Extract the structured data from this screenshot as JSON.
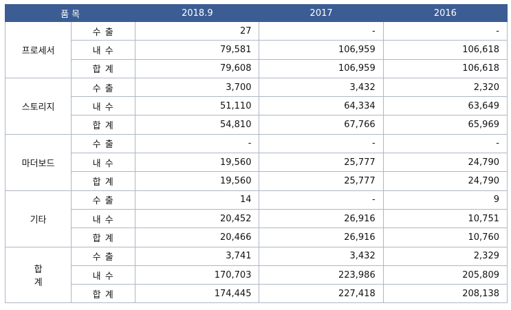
{
  "header": {
    "item": "품 목",
    "cols": [
      "2018.9",
      "2017",
      "2016"
    ]
  },
  "groups": [
    {
      "name": "프로세서",
      "rows": [
        {
          "label": "수 출",
          "values": [
            "27",
            "-",
            "-"
          ]
        },
        {
          "label": "내 수",
          "values": [
            "79,581",
            "106,959",
            "106,618"
          ]
        },
        {
          "label": "합 계",
          "values": [
            "79,608",
            "106,959",
            "106,618"
          ]
        }
      ]
    },
    {
      "name": "스토리지",
      "rows": [
        {
          "label": "수 출",
          "values": [
            "3,700",
            "3,432",
            "2,320"
          ]
        },
        {
          "label": "내 수",
          "values": [
            "51,110",
            "64,334",
            "63,649"
          ]
        },
        {
          "label": "합 계",
          "values": [
            "54,810",
            "67,766",
            "65,969"
          ]
        }
      ]
    },
    {
      "name": "마더보드",
      "rows": [
        {
          "label": "수 출",
          "values": [
            "-",
            "-",
            "-"
          ]
        },
        {
          "label": "내 수",
          "values": [
            "19,560",
            "25,777",
            "24,790"
          ]
        },
        {
          "label": "합 계",
          "values": [
            "19,560",
            "25,777",
            "24,790"
          ]
        }
      ]
    },
    {
      "name": "기타",
      "rows": [
        {
          "label": "수 출",
          "values": [
            "14",
            "-",
            "9"
          ]
        },
        {
          "label": "내 수",
          "values": [
            "20,452",
            "26,916",
            "10,751"
          ]
        },
        {
          "label": "합 계",
          "values": [
            "20,466",
            "26,916",
            "10,760"
          ]
        }
      ]
    },
    {
      "name": "합계",
      "rows": [
        {
          "label": "수 출",
          "values": [
            "3,741",
            "3,432",
            "2,329"
          ]
        },
        {
          "label": "내 수",
          "values": [
            "170,703",
            "223,986",
            "205,809"
          ]
        },
        {
          "label": "합 계",
          "values": [
            "174,445",
            "227,418",
            "208,138"
          ]
        }
      ]
    }
  ]
}
